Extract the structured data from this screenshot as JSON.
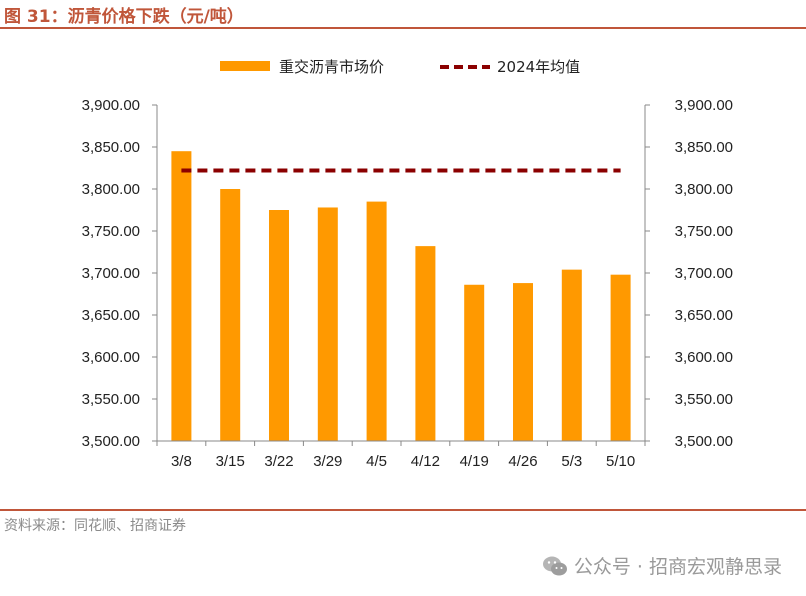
{
  "header": {
    "title": "图 31：沥青价格下跌（元/吨）"
  },
  "footer": {
    "source": "资料来源：同花顺、招商证券",
    "watermark": "公众号 · 招商宏观静思录"
  },
  "colors": {
    "accent": "#c0563a",
    "bar": "#ff9900",
    "avg_line": "#8b0000"
  },
  "chart_data": {
    "type": "bar",
    "title": "",
    "categories": [
      "3/8",
      "3/15",
      "3/22",
      "3/29",
      "4/5",
      "4/12",
      "4/19",
      "4/26",
      "5/3",
      "5/10"
    ],
    "series": [
      {
        "name": "重交沥青市场价",
        "type": "bar",
        "values": [
          3845,
          3800,
          3775,
          3778,
          3785,
          3732,
          3686,
          3688,
          3704,
          3698
        ]
      },
      {
        "name": "2024年均值",
        "type": "line",
        "style": "dashed",
        "values": [
          3822,
          3822,
          3822,
          3822,
          3822,
          3822,
          3822,
          3822,
          3822,
          3822
        ]
      }
    ],
    "ylim": [
      3500,
      3900
    ],
    "y_ticks": [
      "3,500.00",
      "3,550.00",
      "3,600.00",
      "3,650.00",
      "3,700.00",
      "3,750.00",
      "3,800.00",
      "3,850.00",
      "3,900.00"
    ],
    "secondary_y_ticks": [
      "3,500.00",
      "3,550.00",
      "3,600.00",
      "3,650.00",
      "3,700.00",
      "3,750.00",
      "3,800.00",
      "3,850.00",
      "3,900.00"
    ],
    "xlabel": "",
    "ylabel": "",
    "grid": false,
    "legend": "top-center"
  }
}
